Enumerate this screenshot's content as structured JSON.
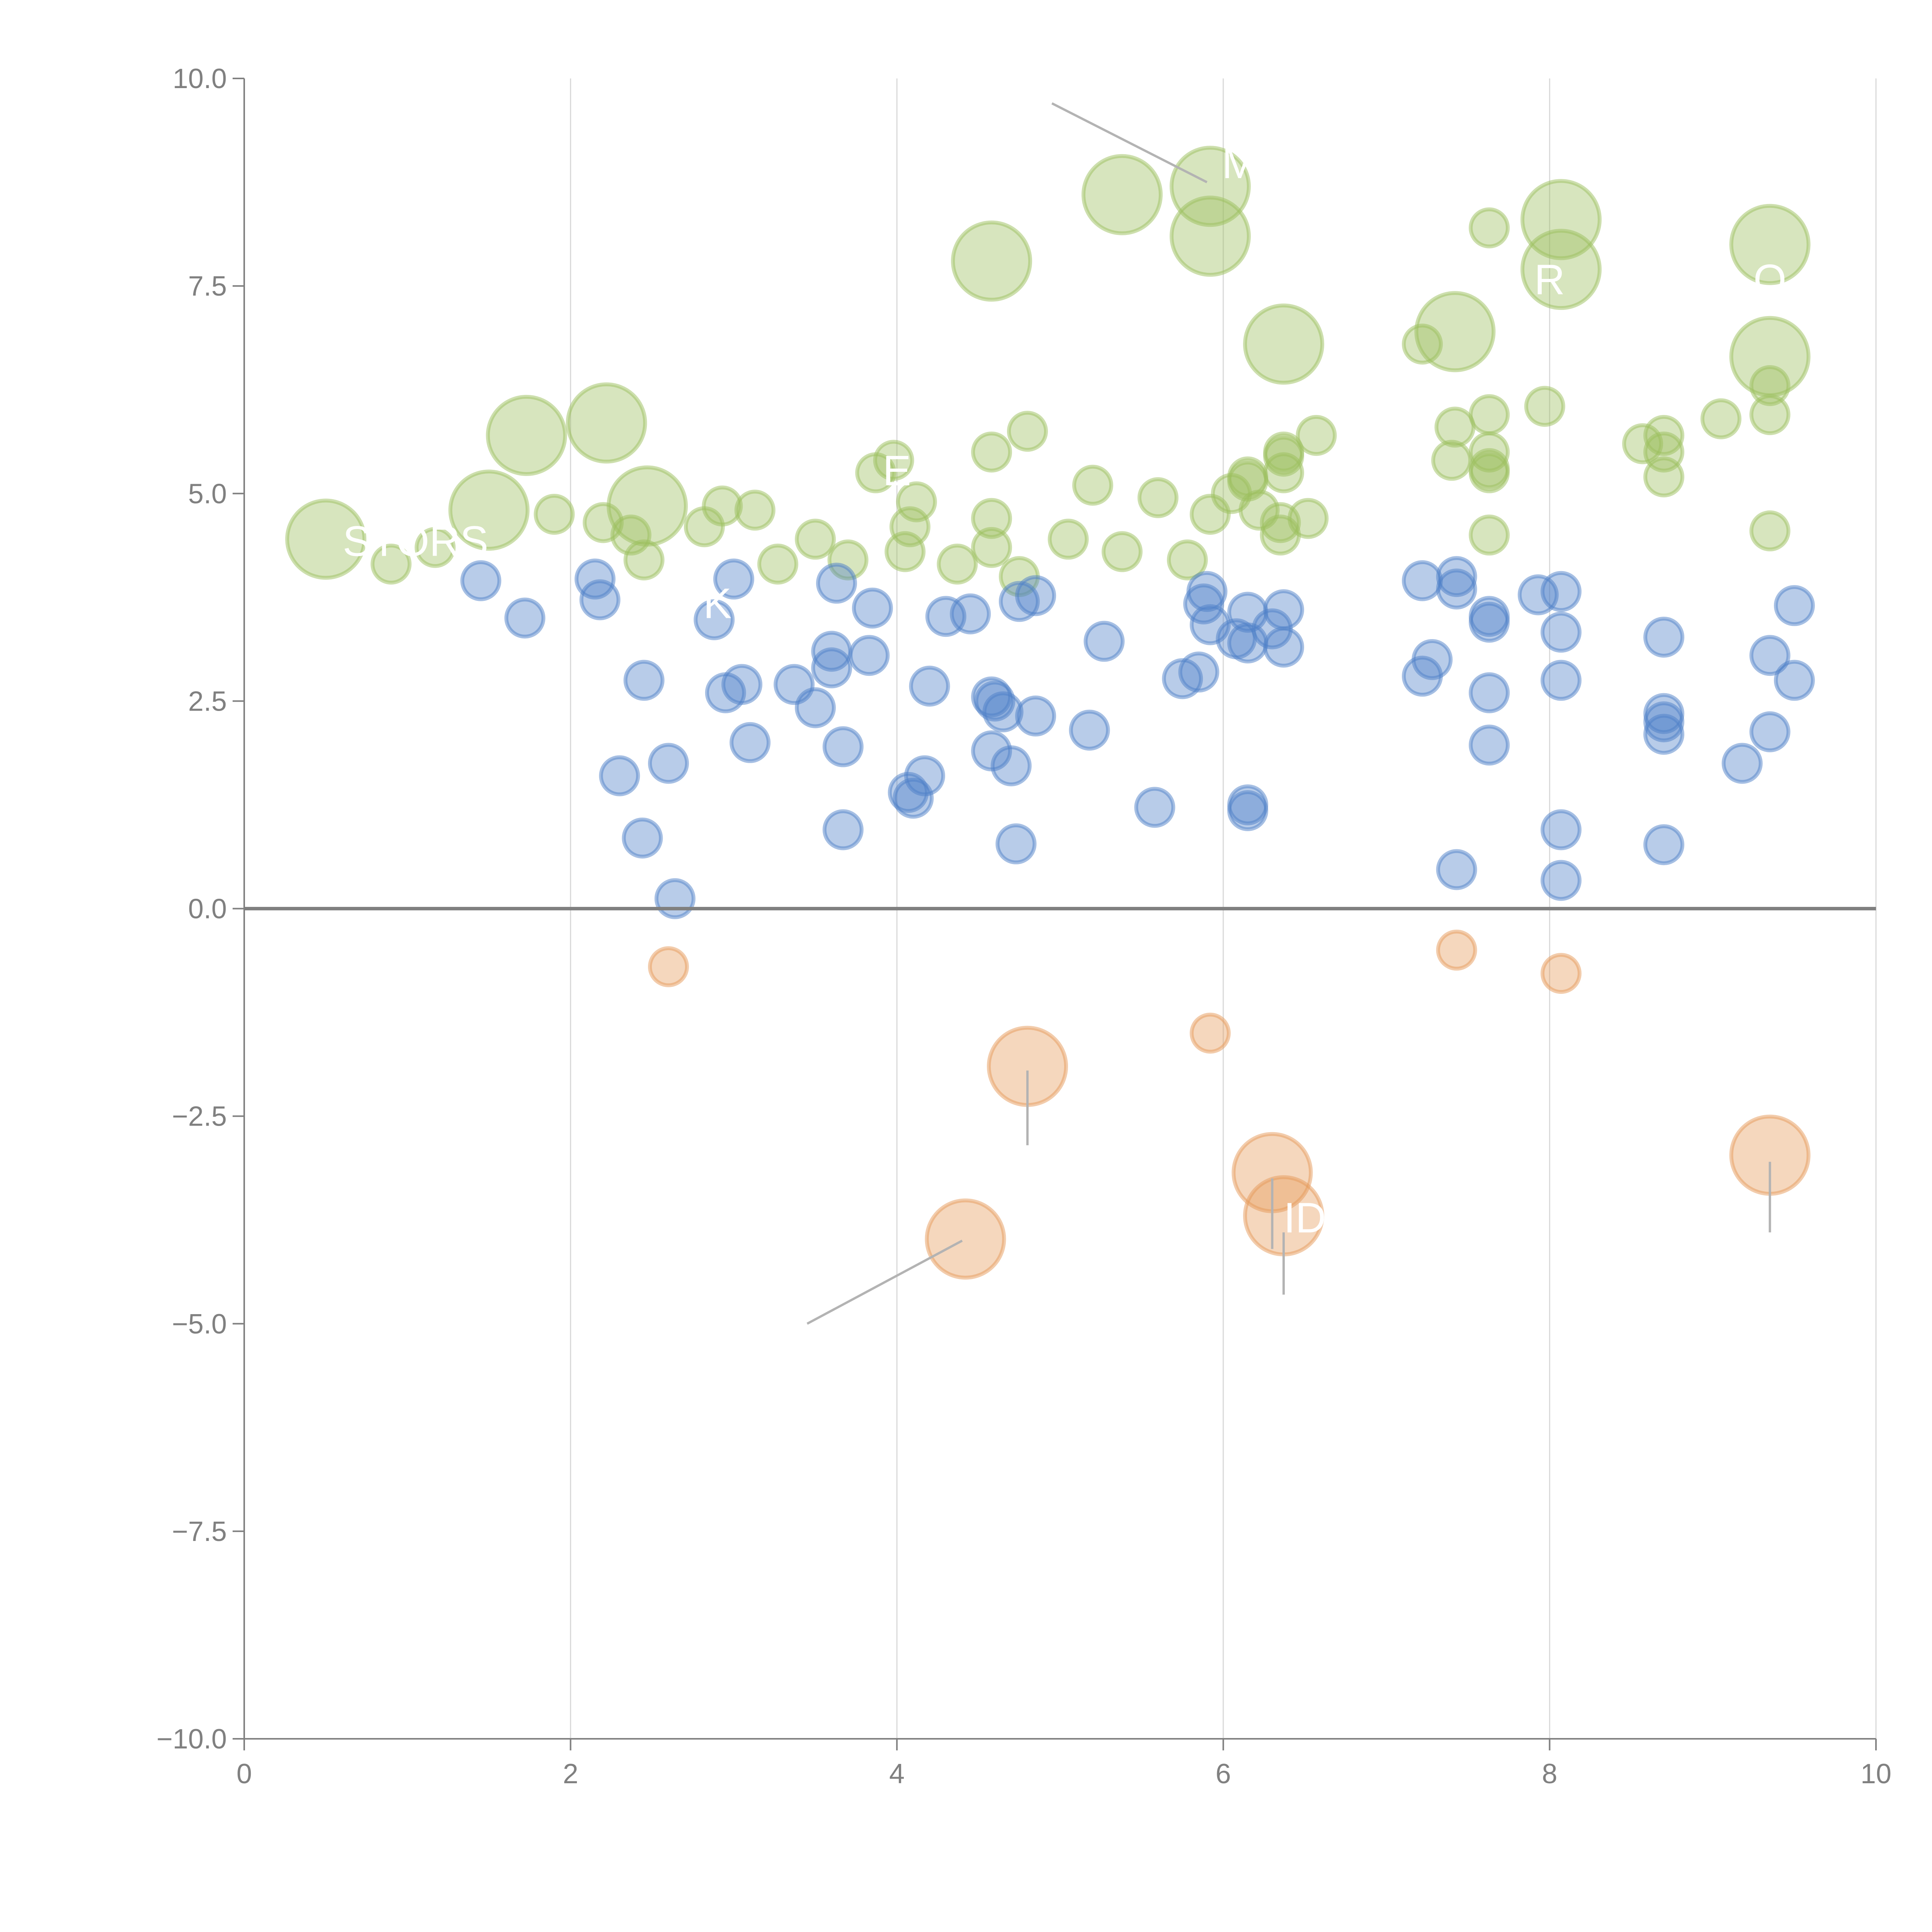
{
  "chart_data": {
    "type": "scatter",
    "subtype": "bubble",
    "title": "",
    "xlabel": "",
    "ylabel": "",
    "xlim": [
      0,
      10
    ],
    "ylim": [
      -10,
      10
    ],
    "x_ticks": [
      0,
      2,
      4,
      6,
      8,
      10
    ],
    "x_tick_labels": [
      "0",
      "2",
      "4",
      "6",
      "8",
      "10"
    ],
    "y_ticks": [
      10,
      7.5,
      5,
      2.5,
      0,
      -2.5,
      -5,
      -7.5,
      -10
    ],
    "y_tick_labels": [
      "10.0",
      "7.5",
      "5.0",
      "2.5",
      "0.0",
      "−2.5",
      "−5.0",
      "−7.5",
      "−10.0"
    ],
    "grid": "vertical",
    "reference_line": {
      "axis": "y",
      "value": 0
    },
    "legend": "none",
    "colors": {
      "blue": "#4e80c8",
      "green": "#9bbf5d",
      "orange": "#e59a5a"
    },
    "series": [
      {
        "name": "green",
        "color": "#9bbf5d",
        "points": [
          {
            "x": 0.5,
            "y": 4.45,
            "s": "L"
          },
          {
            "x": 0.9,
            "y": 4.15,
            "s": "S"
          },
          {
            "x": 1.17,
            "y": 4.35,
            "s": "S"
          },
          {
            "x": 1.5,
            "y": 4.8,
            "s": "L"
          },
          {
            "x": 1.73,
            "y": 5.7,
            "s": "L"
          },
          {
            "x": 1.9,
            "y": 4.75,
            "s": "S"
          },
          {
            "x": 2.22,
            "y": 5.85,
            "s": "L"
          },
          {
            "x": 2.2,
            "y": 4.65,
            "s": "S"
          },
          {
            "x": 2.37,
            "y": 4.5,
            "s": "S"
          },
          {
            "x": 2.47,
            "y": 4.85,
            "s": "L"
          },
          {
            "x": 2.45,
            "y": 4.2,
            "s": "S"
          },
          {
            "x": 2.82,
            "y": 4.6,
            "s": "S"
          },
          {
            "x": 2.93,
            "y": 4.85,
            "s": "S"
          },
          {
            "x": 3.13,
            "y": 4.8,
            "s": "S"
          },
          {
            "x": 3.27,
            "y": 4.15,
            "s": "S"
          },
          {
            "x": 3.5,
            "y": 4.45,
            "s": "S"
          },
          {
            "x": 3.7,
            "y": 4.2,
            "s": "S"
          },
          {
            "x": 3.87,
            "y": 5.25,
            "s": "S"
          },
          {
            "x": 3.98,
            "y": 5.4,
            "s": "S"
          },
          {
            "x": 4.05,
            "y": 4.3,
            "s": "S"
          },
          {
            "x": 4.08,
            "y": 4.6,
            "s": "S"
          },
          {
            "x": 4.12,
            "y": 4.9,
            "s": "S"
          },
          {
            "x": 4.37,
            "y": 4.15,
            "s": "S"
          },
          {
            "x": 4.58,
            "y": 4.35,
            "s": "S"
          },
          {
            "x": 4.58,
            "y": 4.7,
            "s": "S"
          },
          {
            "x": 4.58,
            "y": 5.5,
            "s": "S"
          },
          {
            "x": 4.58,
            "y": 7.8,
            "s": "L"
          },
          {
            "x": 4.8,
            "y": 5.75,
            "s": "S"
          },
          {
            "x": 4.75,
            "y": 4.0,
            "s": "S"
          },
          {
            "x": 5.05,
            "y": 4.45,
            "s": "S"
          },
          {
            "x": 5.2,
            "y": 5.1,
            "s": "S"
          },
          {
            "x": 5.38,
            "y": 4.3,
            "s": "S"
          },
          {
            "x": 5.38,
            "y": 8.6,
            "s": "L"
          },
          {
            "x": 5.6,
            "y": 4.95,
            "s": "S"
          },
          {
            "x": 5.78,
            "y": 4.2,
            "s": "S"
          },
          {
            "x": 5.92,
            "y": 8.7,
            "s": "L"
          },
          {
            "x": 5.92,
            "y": 8.1,
            "s": "L"
          },
          {
            "x": 5.92,
            "y": 4.75,
            "s": "S"
          },
          {
            "x": 6.05,
            "y": 5.0,
            "s": "S"
          },
          {
            "x": 6.15,
            "y": 5.2,
            "s": "S"
          },
          {
            "x": 6.15,
            "y": 5.15,
            "s": "S"
          },
          {
            "x": 6.22,
            "y": 4.8,
            "s": "S"
          },
          {
            "x": 6.35,
            "y": 4.65,
            "s": "S"
          },
          {
            "x": 6.35,
            "y": 4.5,
            "s": "S"
          },
          {
            "x": 6.37,
            "y": 5.25,
            "s": "S"
          },
          {
            "x": 6.37,
            "y": 5.45,
            "s": "S"
          },
          {
            "x": 6.37,
            "y": 5.5,
            "s": "S"
          },
          {
            "x": 6.37,
            "y": 6.8,
            "s": "L"
          },
          {
            "x": 6.52,
            "y": 4.7,
            "s": "S"
          },
          {
            "x": 6.57,
            "y": 5.7,
            "s": "S"
          },
          {
            "x": 7.22,
            "y": 6.8,
            "s": "S"
          },
          {
            "x": 7.4,
            "y": 5.4,
            "s": "S"
          },
          {
            "x": 7.42,
            "y": 5.8,
            "s": "S"
          },
          {
            "x": 7.42,
            "y": 6.95,
            "s": "L"
          },
          {
            "x": 7.63,
            "y": 8.2,
            "s": "S"
          },
          {
            "x": 7.63,
            "y": 5.95,
            "s": "S"
          },
          {
            "x": 7.63,
            "y": 5.5,
            "s": "S"
          },
          {
            "x": 7.63,
            "y": 5.3,
            "s": "S"
          },
          {
            "x": 7.63,
            "y": 5.25,
            "s": "S"
          },
          {
            "x": 7.63,
            "y": 4.5,
            "s": "S"
          },
          {
            "x": 7.97,
            "y": 6.05,
            "s": "S"
          },
          {
            "x": 8.07,
            "y": 8.3,
            "s": "L"
          },
          {
            "x": 8.07,
            "y": 7.7,
            "s": "L"
          },
          {
            "x": 8.57,
            "y": 5.6,
            "s": "S"
          },
          {
            "x": 8.7,
            "y": 5.7,
            "s": "S"
          },
          {
            "x": 8.7,
            "y": 5.5,
            "s": "S"
          },
          {
            "x": 8.7,
            "y": 5.2,
            "s": "S"
          },
          {
            "x": 9.05,
            "y": 5.9,
            "s": "S"
          },
          {
            "x": 9.35,
            "y": 8.0,
            "s": "L"
          },
          {
            "x": 9.35,
            "y": 6.65,
            "s": "L"
          },
          {
            "x": 9.35,
            "y": 6.3,
            "s": "S"
          },
          {
            "x": 9.35,
            "y": 5.95,
            "s": "S"
          },
          {
            "x": 9.35,
            "y": 4.55,
            "s": "S"
          }
        ]
      },
      {
        "name": "blue",
        "color": "#4e80c8",
        "points": [
          {
            "x": 1.45,
            "y": 3.95,
            "s": "S"
          },
          {
            "x": 1.72,
            "y": 3.5,
            "s": "S"
          },
          {
            "x": 2.15,
            "y": 3.97,
            "s": "S"
          },
          {
            "x": 2.18,
            "y": 3.72,
            "s": "S"
          },
          {
            "x": 2.3,
            "y": 1.6,
            "s": "S"
          },
          {
            "x": 2.45,
            "y": 2.75,
            "s": "S"
          },
          {
            "x": 2.44,
            "y": 0.85,
            "s": "S"
          },
          {
            "x": 2.6,
            "y": 1.75,
            "s": "S"
          },
          {
            "x": 2.64,
            "y": 0.12,
            "s": "S"
          },
          {
            "x": 2.88,
            "y": 3.48,
            "s": "S"
          },
          {
            "x": 2.95,
            "y": 2.6,
            "s": "S"
          },
          {
            "x": 3.0,
            "y": 3.97,
            "s": "S"
          },
          {
            "x": 3.05,
            "y": 2.7,
            "s": "S"
          },
          {
            "x": 3.1,
            "y": 2.0,
            "s": "S"
          },
          {
            "x": 3.37,
            "y": 2.7,
            "s": "S"
          },
          {
            "x": 3.5,
            "y": 2.42,
            "s": "S"
          },
          {
            "x": 3.6,
            "y": 3.1,
            "s": "S"
          },
          {
            "x": 3.6,
            "y": 2.9,
            "s": "S"
          },
          {
            "x": 3.63,
            "y": 3.92,
            "s": "S"
          },
          {
            "x": 3.67,
            "y": 1.95,
            "s": "S"
          },
          {
            "x": 3.67,
            "y": 0.95,
            "s": "S"
          },
          {
            "x": 3.83,
            "y": 3.05,
            "s": "S"
          },
          {
            "x": 3.85,
            "y": 3.62,
            "s": "S"
          },
          {
            "x": 4.07,
            "y": 1.4,
            "s": "S"
          },
          {
            "x": 4.1,
            "y": 1.33,
            "s": "S"
          },
          {
            "x": 4.17,
            "y": 1.6,
            "s": "S"
          },
          {
            "x": 4.2,
            "y": 2.68,
            "s": "S"
          },
          {
            "x": 4.3,
            "y": 3.52,
            "s": "S"
          },
          {
            "x": 4.45,
            "y": 3.55,
            "s": "S"
          },
          {
            "x": 4.58,
            "y": 2.55,
            "s": "S"
          },
          {
            "x": 4.6,
            "y": 2.5,
            "s": "S"
          },
          {
            "x": 4.58,
            "y": 1.9,
            "s": "S"
          },
          {
            "x": 4.65,
            "y": 2.37,
            "s": "S"
          },
          {
            "x": 4.7,
            "y": 1.72,
            "s": "S"
          },
          {
            "x": 4.73,
            "y": 0.78,
            "s": "S"
          },
          {
            "x": 4.75,
            "y": 3.7,
            "s": "S"
          },
          {
            "x": 4.85,
            "y": 3.77,
            "s": "S"
          },
          {
            "x": 4.85,
            "y": 2.32,
            "s": "S"
          },
          {
            "x": 5.18,
            "y": 2.15,
            "s": "S"
          },
          {
            "x": 5.27,
            "y": 3.22,
            "s": "S"
          },
          {
            "x": 5.58,
            "y": 1.22,
            "s": "S"
          },
          {
            "x": 5.75,
            "y": 2.77,
            "s": "S"
          },
          {
            "x": 5.85,
            "y": 2.85,
            "s": "S"
          },
          {
            "x": 5.88,
            "y": 3.67,
            "s": "S"
          },
          {
            "x": 5.9,
            "y": 3.82,
            "s": "S"
          },
          {
            "x": 5.92,
            "y": 3.42,
            "s": "S"
          },
          {
            "x": 6.08,
            "y": 3.25,
            "s": "S"
          },
          {
            "x": 6.15,
            "y": 3.57,
            "s": "S"
          },
          {
            "x": 6.15,
            "y": 3.2,
            "s": "S"
          },
          {
            "x": 6.15,
            "y": 1.25,
            "s": "S"
          },
          {
            "x": 6.15,
            "y": 1.18,
            "s": "S"
          },
          {
            "x": 6.3,
            "y": 3.37,
            "s": "S"
          },
          {
            "x": 6.37,
            "y": 3.6,
            "s": "S"
          },
          {
            "x": 6.37,
            "y": 3.15,
            "s": "S"
          },
          {
            "x": 7.22,
            "y": 3.95,
            "s": "S"
          },
          {
            "x": 7.22,
            "y": 2.8,
            "s": "S"
          },
          {
            "x": 7.28,
            "y": 3.0,
            "s": "S"
          },
          {
            "x": 7.43,
            "y": 4.0,
            "s": "S"
          },
          {
            "x": 7.43,
            "y": 3.85,
            "s": "S"
          },
          {
            "x": 7.43,
            "y": 0.47,
            "s": "S"
          },
          {
            "x": 7.63,
            "y": 3.52,
            "s": "S"
          },
          {
            "x": 7.63,
            "y": 3.45,
            "s": "S"
          },
          {
            "x": 7.63,
            "y": 2.6,
            "s": "S"
          },
          {
            "x": 7.63,
            "y": 1.97,
            "s": "S"
          },
          {
            "x": 7.93,
            "y": 3.78,
            "s": "S"
          },
          {
            "x": 8.07,
            "y": 3.82,
            "s": "S"
          },
          {
            "x": 8.07,
            "y": 3.33,
            "s": "S"
          },
          {
            "x": 8.07,
            "y": 2.75,
            "s": "S"
          },
          {
            "x": 8.07,
            "y": 0.95,
            "s": "S"
          },
          {
            "x": 8.07,
            "y": 0.34,
            "s": "S"
          },
          {
            "x": 8.7,
            "y": 3.27,
            "s": "S"
          },
          {
            "x": 8.7,
            "y": 2.35,
            "s": "S"
          },
          {
            "x": 8.7,
            "y": 2.25,
            "s": "S"
          },
          {
            "x": 8.7,
            "y": 2.1,
            "s": "S"
          },
          {
            "x": 8.7,
            "y": 0.77,
            "s": "S"
          },
          {
            "x": 9.18,
            "y": 1.75,
            "s": "S"
          },
          {
            "x": 9.35,
            "y": 3.05,
            "s": "S"
          },
          {
            "x": 9.35,
            "y": 2.13,
            "s": "S"
          },
          {
            "x": 9.5,
            "y": 3.65,
            "s": "S"
          },
          {
            "x": 9.5,
            "y": 2.75,
            "s": "S"
          }
        ]
      },
      {
        "name": "orange",
        "color": "#e59a5a",
        "points": [
          {
            "x": 2.6,
            "y": -0.7,
            "s": "S"
          },
          {
            "x": 4.42,
            "y": -3.98,
            "s": "L"
          },
          {
            "x": 4.8,
            "y": -1.9,
            "s": "L"
          },
          {
            "x": 5.92,
            "y": -1.5,
            "s": "S"
          },
          {
            "x": 6.3,
            "y": -3.18,
            "s": "L"
          },
          {
            "x": 6.37,
            "y": -3.7,
            "s": "L"
          },
          {
            "x": 7.43,
            "y": -0.5,
            "s": "S"
          },
          {
            "x": 8.07,
            "y": -0.78,
            "s": "S"
          },
          {
            "x": 9.35,
            "y": -2.97,
            "s": "L"
          }
        ]
      }
    ],
    "bubble_size_legend": {
      "S": "small",
      "L": "large"
    },
    "annotations": [
      {
        "text": "STORS",
        "x": 1.05,
        "y": 4.25,
        "color": "#ffffff",
        "visibility": "partial"
      },
      {
        "text": "K",
        "x": 2.9,
        "y": 3.5,
        "color": "#ffffff",
        "visibility": "partial"
      },
      {
        "text": "E",
        "x": 4.0,
        "y": 5.1,
        "color": "#ffffff",
        "visibility": "partial"
      },
      {
        "text": "M",
        "x": 6.1,
        "y": 8.8,
        "color": "#ffffff",
        "visibility": "partial"
      },
      {
        "text": "R",
        "x": 8.0,
        "y": 7.4,
        "color": "#ffffff",
        "visibility": "partial"
      },
      {
        "text": "O",
        "x": 9.35,
        "y": 7.4,
        "color": "#ffffff",
        "visibility": "partial"
      },
      {
        "text": "ID",
        "x": 6.5,
        "y": -3.9,
        "color": "#ffffff",
        "visibility": "partial"
      }
    ],
    "leader_lines": [
      {
        "from": [
          4.95,
          9.7
        ],
        "to": [
          5.9,
          8.75
        ],
        "color": "#b3b3b3"
      },
      {
        "from": [
          4.8,
          -1.95
        ],
        "to": [
          4.8,
          -2.85
        ],
        "color": "#b3b3b3"
      },
      {
        "from": [
          4.4,
          -4.0
        ],
        "to": [
          3.45,
          -5.0
        ],
        "color": "#b3b3b3"
      },
      {
        "from": [
          6.3,
          -3.25
        ],
        "to": [
          6.3,
          -4.1
        ],
        "color": "#b3b3b3"
      },
      {
        "from": [
          6.37,
          -3.9
        ],
        "to": [
          6.37,
          -4.65
        ],
        "color": "#b3b3b3"
      },
      {
        "from": [
          9.35,
          -3.05
        ],
        "to": [
          9.35,
          -3.9
        ],
        "color": "#b3b3b3"
      }
    ]
  }
}
